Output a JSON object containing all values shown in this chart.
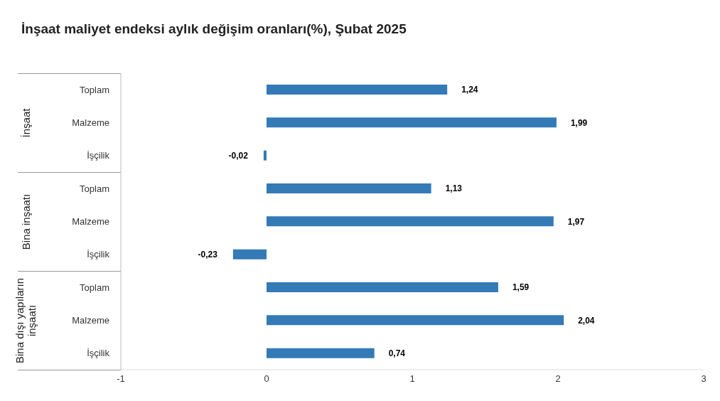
{
  "chart_data": {
    "type": "bar",
    "orientation": "horizontal",
    "title": "İnşaat maliyet endeksi aylık değişim oranları(%), Şubat 2025",
    "categories": [
      "Toplam",
      "Malzeme",
      "İşçilik",
      "Toplam",
      "Malzeme",
      "İşçilik",
      "Toplam",
      "Malzeme",
      "İşçilik"
    ],
    "values": [
      1.24,
      1.99,
      -0.02,
      1.13,
      1.97,
      -0.23,
      1.59,
      2.04,
      0.74
    ],
    "value_labels": [
      "1,24",
      "1,99",
      "-0,02",
      "1,13",
      "1,97",
      "-0,23",
      "1,59",
      "2,04",
      "0,74"
    ],
    "color": "#337ab7",
    "xlim": [
      -1,
      3
    ],
    "xticks": [
      -1,
      0,
      1,
      2,
      3
    ],
    "grid": false,
    "legend": false,
    "annotations": [
      "İnşaat",
      "Bina inşaatı",
      "Bina dışı yapıların inşaatı"
    ]
  }
}
